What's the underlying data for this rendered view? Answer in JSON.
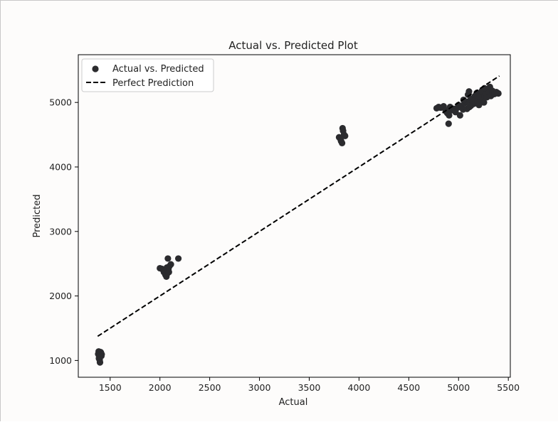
{
  "chart_data": {
    "type": "scatter",
    "title": "Actual vs. Predicted Plot",
    "xlabel": "Actual",
    "ylabel": "Predicted",
    "xlim": [
      1180,
      5520
    ],
    "ylim": [
      740,
      5740
    ],
    "xticks": [
      1500,
      2000,
      2500,
      3000,
      3500,
      4000,
      4500,
      5000,
      5500
    ],
    "yticks": [
      1000,
      2000,
      3000,
      4000,
      5000
    ],
    "xtick_labels": [
      "1500",
      "2000",
      "2500",
      "3000",
      "3500",
      "4000",
      "4500",
      "5000",
      "5500"
    ],
    "ytick_labels": [
      "1000",
      "2000",
      "3000",
      "4000",
      "5000"
    ],
    "grid": false,
    "legend": {
      "placement": "top-left",
      "entries": [
        {
          "label": "Actual vs. Predicted",
          "marker": "circle",
          "color": "#2b2b2e"
        },
        {
          "label": "Perfect Prediction",
          "marker": "dashed-line",
          "color": "#000000"
        }
      ]
    },
    "series": [
      {
        "name": "Actual vs. Predicted",
        "kind": "scatter",
        "color": "#2b2b2e",
        "points": [
          [
            1385,
            1140
          ],
          [
            1400,
            1090
          ],
          [
            1390,
            1050
          ],
          [
            1395,
            1010
          ],
          [
            1408,
            1120
          ],
          [
            1412,
            1070
          ],
          [
            1398,
            970
          ],
          [
            1380,
            1100
          ],
          [
            1404,
            1130
          ],
          [
            1388,
            1030
          ],
          [
            1415,
            1095
          ],
          [
            1392,
            1075
          ],
          [
            2000,
            2430
          ],
          [
            2020,
            2420
          ],
          [
            2040,
            2370
          ],
          [
            2055,
            2330
          ],
          [
            2065,
            2300
          ],
          [
            2075,
            2350
          ],
          [
            2085,
            2410
          ],
          [
            2095,
            2460
          ],
          [
            2080,
            2580
          ],
          [
            2110,
            2490
          ],
          [
            2185,
            2580
          ],
          [
            2048,
            2400
          ],
          [
            2070,
            2440
          ],
          [
            2030,
            2410
          ],
          [
            2090,
            2370
          ],
          [
            3800,
            4460
          ],
          [
            3820,
            4400
          ],
          [
            3830,
            4370
          ],
          [
            3840,
            4560
          ],
          [
            3835,
            4600
          ],
          [
            3850,
            4500
          ],
          [
            3860,
            4480
          ],
          [
            3815,
            4430
          ],
          [
            4780,
            4910
          ],
          [
            4800,
            4930
          ],
          [
            4820,
            4920
          ],
          [
            4850,
            4940
          ],
          [
            4870,
            4880
          ],
          [
            4880,
            4850
          ],
          [
            4890,
            4830
          ],
          [
            4900,
            4670
          ],
          [
            4905,
            4800
          ],
          [
            4915,
            4930
          ],
          [
            4930,
            4880
          ],
          [
            4950,
            4900
          ],
          [
            4970,
            4850
          ],
          [
            4990,
            4920
          ],
          [
            5000,
            4960
          ],
          [
            5015,
            4800
          ],
          [
            5030,
            4940
          ],
          [
            5045,
            4890
          ],
          [
            5060,
            4990
          ],
          [
            5075,
            5010
          ],
          [
            5085,
            4900
          ],
          [
            5095,
            5120
          ],
          [
            5105,
            5170
          ],
          [
            5115,
            5030
          ],
          [
            5125,
            4950
          ],
          [
            5135,
            5060
          ],
          [
            5145,
            5000
          ],
          [
            5155,
            4980
          ],
          [
            5165,
            5100
          ],
          [
            5175,
            5040
          ],
          [
            5185,
            5150
          ],
          [
            5195,
            5020
          ],
          [
            5205,
            4960
          ],
          [
            5215,
            5070
          ],
          [
            5225,
            5130
          ],
          [
            5235,
            5180
          ],
          [
            5245,
            5050
          ],
          [
            5255,
            5000
          ],
          [
            5265,
            5110
          ],
          [
            5275,
            5140
          ],
          [
            5285,
            5080
          ],
          [
            5295,
            5200
          ],
          [
            5305,
            5160
          ],
          [
            5315,
            5240
          ],
          [
            5325,
            5100
          ],
          [
            5340,
            5180
          ],
          [
            5360,
            5130
          ],
          [
            5380,
            5160
          ],
          [
            5400,
            5140
          ],
          [
            5050,
            5040
          ],
          [
            5110,
            4930
          ],
          [
            5200,
            5090
          ],
          [
            5260,
            5220
          ]
        ]
      },
      {
        "name": "Perfect Prediction",
        "kind": "line",
        "style": "dashed",
        "color": "#000000",
        "points": [
          [
            1375,
            1375
          ],
          [
            5410,
            5410
          ]
        ]
      }
    ]
  }
}
